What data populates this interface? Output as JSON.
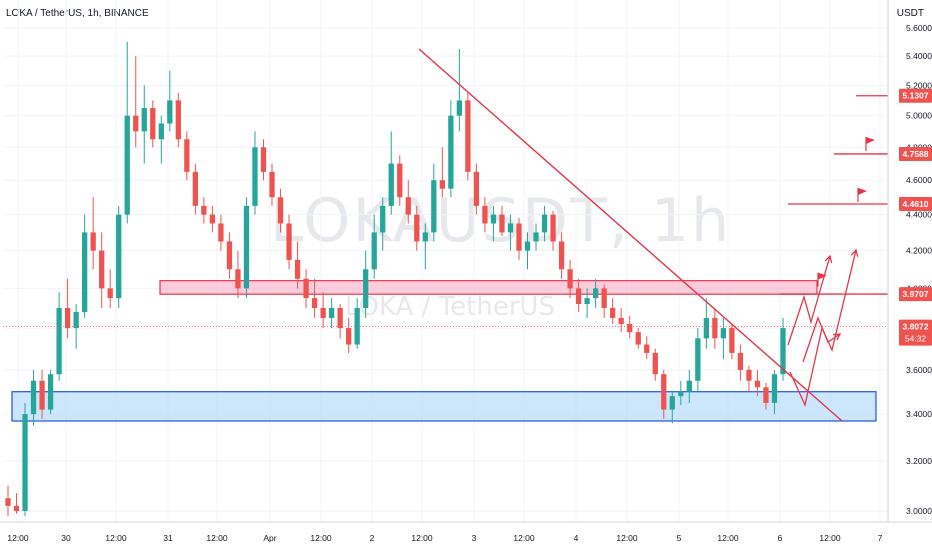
{
  "header": {
    "title": "LOKA / TetherUS, 1h, BINANCE",
    "currency": "USDT"
  },
  "watermark": {
    "symbol": "LOKAUSDT, 1h",
    "name": "LOKA / TetherUS"
  },
  "colors": {
    "up": "#26a69a",
    "down": "#ef5350",
    "drawing": "#e5354a",
    "support_zone": "#bbdefb",
    "support_border": "#1e53e5",
    "resistance_zone": "#f8bbd0"
  },
  "chart_data": {
    "type": "candlestick",
    "symbol": "LOKA / TetherUS",
    "interval": "1h",
    "exchange": "BINANCE",
    "quote_currency": "USDT",
    "y_scale": "log",
    "ylim": [
      2.95,
      5.75
    ],
    "y_ticks": [
      "3.0000",
      "3.2000",
      "3.4000",
      "3.6000",
      "3.8000",
      "4.0000",
      "4.2000",
      "4.4000",
      "4.6000",
      "4.8000",
      "5.0000",
      "5.2000",
      "5.4000",
      "5.6000"
    ],
    "x_tick_labels": [
      "12:00",
      "30",
      "12:00",
      "31",
      "12:00",
      "Apr",
      "12:00",
      "2",
      "12:00",
      "3",
      "12:00",
      "4",
      "12:00",
      "5",
      "12:00",
      "6",
      "12:00",
      "7"
    ],
    "last_price": "3.8072",
    "countdown": "54:32",
    "price_tags": [
      {
        "value": "5.1307",
        "kind": "target"
      },
      {
        "value": "4.7588",
        "kind": "target"
      },
      {
        "value": "4.4610",
        "kind": "target"
      },
      {
        "value": "3.9707",
        "kind": "resistance"
      },
      {
        "value": "3.8072",
        "kind": "last"
      }
    ],
    "zones": [
      {
        "name": "support",
        "low": 3.37,
        "high": 3.5
      },
      {
        "name": "resistance",
        "low": 3.97,
        "high": 4.04
      }
    ],
    "trendline": {
      "from": {
        "time": "Apr 2 12:00",
        "price": 5.45
      },
      "to": {
        "time": "Apr 6 18:00",
        "price": 3.37
      }
    },
    "ohlc_path": [
      [
        3.05,
        3.1,
        2.98,
        3.02
      ],
      [
        3.02,
        3.07,
        2.99,
        3.0
      ],
      [
        3.0,
        3.45,
        2.98,
        3.4
      ],
      [
        3.4,
        3.6,
        3.35,
        3.55
      ],
      [
        3.55,
        3.6,
        3.38,
        3.42
      ],
      [
        3.42,
        3.6,
        3.4,
        3.58
      ],
      [
        3.58,
        3.98,
        3.55,
        3.9
      ],
      [
        3.9,
        4.05,
        3.75,
        3.8
      ],
      [
        3.8,
        3.92,
        3.7,
        3.88
      ],
      [
        3.88,
        4.4,
        3.85,
        4.3
      ],
      [
        4.3,
        4.5,
        4.1,
        4.2
      ],
      [
        4.2,
        4.3,
        3.9,
        4.0
      ],
      [
        4.0,
        4.1,
        3.9,
        3.95
      ],
      [
        3.95,
        4.45,
        3.9,
        4.4
      ],
      [
        4.4,
        5.5,
        4.35,
        5.0
      ],
      [
        5.0,
        5.4,
        4.8,
        4.9
      ],
      [
        4.9,
        5.2,
        4.7,
        5.05
      ],
      [
        5.05,
        5.1,
        4.8,
        4.85
      ],
      [
        4.85,
        5.0,
        4.7,
        4.95
      ],
      [
        4.95,
        5.3,
        4.9,
        5.1
      ],
      [
        5.1,
        5.15,
        4.8,
        4.85
      ],
      [
        4.85,
        4.9,
        4.6,
        4.65
      ],
      [
        4.65,
        4.7,
        4.4,
        4.45
      ],
      [
        4.45,
        4.5,
        4.35,
        4.4
      ],
      [
        4.4,
        4.45,
        4.3,
        4.35
      ],
      [
        4.35,
        4.4,
        4.2,
        4.25
      ],
      [
        4.25,
        4.3,
        4.05,
        4.1
      ],
      [
        4.1,
        4.2,
        3.95,
        4.0
      ],
      [
        4.0,
        4.5,
        3.95,
        4.45
      ],
      [
        4.45,
        4.9,
        4.4,
        4.8
      ],
      [
        4.8,
        4.85,
        4.6,
        4.65
      ],
      [
        4.65,
        4.7,
        4.45,
        4.5
      ],
      [
        4.5,
        4.55,
        4.3,
        4.35
      ],
      [
        4.35,
        4.4,
        4.1,
        4.15
      ],
      [
        4.15,
        4.25,
        4.0,
        4.05
      ],
      [
        4.05,
        4.1,
        3.9,
        3.95
      ],
      [
        3.95,
        4.05,
        3.85,
        3.9
      ],
      [
        3.9,
        3.98,
        3.8,
        3.85
      ],
      [
        3.85,
        3.95,
        3.8,
        3.9
      ],
      [
        3.9,
        3.92,
        3.75,
        3.8
      ],
      [
        3.8,
        3.85,
        3.68,
        3.72
      ],
      [
        3.72,
        3.95,
        3.7,
        3.9
      ],
      [
        3.9,
        4.2,
        3.85,
        4.1
      ],
      [
        4.1,
        4.4,
        4.05,
        4.3
      ],
      [
        4.3,
        4.5,
        4.2,
        4.45
      ],
      [
        4.45,
        4.9,
        4.4,
        4.7
      ],
      [
        4.7,
        4.75,
        4.45,
        4.5
      ],
      [
        4.5,
        4.6,
        4.35,
        4.4
      ],
      [
        4.4,
        4.45,
        4.2,
        4.25
      ],
      [
        4.25,
        4.35,
        4.1,
        4.3
      ],
      [
        4.3,
        4.7,
        4.25,
        4.6
      ],
      [
        4.6,
        4.8,
        4.5,
        4.55
      ],
      [
        4.55,
        5.1,
        4.5,
        5.0
      ],
      [
        5.0,
        5.45,
        4.9,
        5.1
      ],
      [
        5.1,
        5.15,
        4.6,
        4.65
      ],
      [
        4.65,
        4.7,
        4.4,
        4.45
      ],
      [
        4.45,
        4.5,
        4.3,
        4.35
      ],
      [
        4.35,
        4.45,
        4.25,
        4.4
      ],
      [
        4.4,
        4.45,
        4.28,
        4.3
      ],
      [
        4.3,
        4.4,
        4.2,
        4.35
      ],
      [
        4.35,
        4.38,
        4.15,
        4.2
      ],
      [
        4.2,
        4.3,
        4.1,
        4.25
      ],
      [
        4.25,
        4.35,
        4.2,
        4.3
      ],
      [
        4.3,
        4.45,
        4.25,
        4.4
      ],
      [
        4.4,
        4.42,
        4.2,
        4.25
      ],
      [
        4.25,
        4.3,
        4.05,
        4.1
      ],
      [
        4.1,
        4.15,
        3.95,
        4.0
      ],
      [
        4.0,
        4.05,
        3.88,
        3.92
      ],
      [
        3.92,
        4.0,
        3.85,
        3.95
      ],
      [
        3.95,
        4.05,
        3.9,
        4.0
      ],
      [
        4.0,
        4.02,
        3.85,
        3.9
      ],
      [
        3.9,
        3.95,
        3.82,
        3.85
      ],
      [
        3.85,
        3.9,
        3.78,
        3.82
      ],
      [
        3.82,
        3.86,
        3.75,
        3.78
      ],
      [
        3.78,
        3.8,
        3.7,
        3.72
      ],
      [
        3.72,
        3.76,
        3.65,
        3.68
      ],
      [
        3.68,
        3.7,
        3.55,
        3.58
      ],
      [
        3.58,
        3.6,
        3.38,
        3.42
      ],
      [
        3.42,
        3.5,
        3.36,
        3.48
      ],
      [
        3.48,
        3.55,
        3.44,
        3.5
      ],
      [
        3.5,
        3.6,
        3.45,
        3.55
      ],
      [
        3.55,
        3.8,
        3.5,
        3.75
      ],
      [
        3.75,
        3.95,
        3.7,
        3.85
      ],
      [
        3.85,
        3.9,
        3.7,
        3.75
      ],
      [
        3.75,
        3.85,
        3.65,
        3.8
      ],
      [
        3.8,
        3.82,
        3.65,
        3.68
      ],
      [
        3.68,
        3.72,
        3.55,
        3.6
      ],
      [
        3.6,
        3.62,
        3.5,
        3.55
      ],
      [
        3.55,
        3.6,
        3.48,
        3.52
      ],
      [
        3.52,
        3.54,
        3.42,
        3.45
      ],
      [
        3.45,
        3.6,
        3.4,
        3.58
      ],
      [
        3.58,
        3.85,
        3.55,
        3.8
      ]
    ]
  }
}
